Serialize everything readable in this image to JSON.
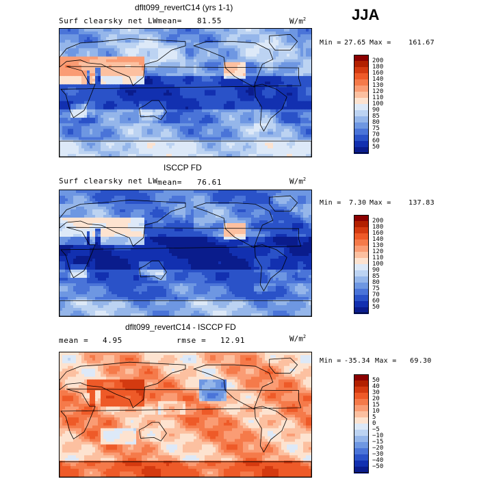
{
  "season": "JJA",
  "chart_data": [
    {
      "type": "heatmap",
      "title": "dflt099_revertC14 (yrs 1-1)",
      "variable": "Surf clearsky net LW",
      "stat_label": "mean=",
      "stat_value": "81.55",
      "units": "W/m",
      "units_exp": "2",
      "min_label": "Min =",
      "min_value": "27.65",
      "max_label": "Max =",
      "max_value": "161.67",
      "levels": [
        "200",
        "180",
        "160",
        "140",
        "130",
        "120",
        "110",
        "100",
        "90",
        "85",
        "80",
        "75",
        "70",
        "60",
        "50"
      ],
      "colors": [
        "#8b0000",
        "#b22000",
        "#d43a10",
        "#ee5a28",
        "#f57a4a",
        "#fa9c74",
        "#fcc0a0",
        "#fde3d0",
        "#dde9f8",
        "#bcd3f2",
        "#95b6ea",
        "#6e97e2",
        "#4a74d8",
        "#2a52c8",
        "#1230b0",
        "#0a1c8c"
      ],
      "field": "control"
    },
    {
      "type": "heatmap",
      "title": "ISCCP FD",
      "variable": "Surf clearsky net LW",
      "stat_label": "mean=",
      "stat_value": "76.61",
      "units": "W/m",
      "units_exp": "2",
      "min_label": "Min =",
      "min_value": "7.30",
      "max_label": "Max =",
      "max_value": "137.83",
      "levels": [
        "200",
        "180",
        "160",
        "140",
        "130",
        "120",
        "110",
        "100",
        "90",
        "85",
        "80",
        "75",
        "70",
        "60",
        "50"
      ],
      "colors": [
        "#8b0000",
        "#b22000",
        "#d43a10",
        "#ee5a28",
        "#f57a4a",
        "#fa9c74",
        "#fcc0a0",
        "#fde3d0",
        "#dde9f8",
        "#bcd3f2",
        "#95b6ea",
        "#6e97e2",
        "#4a74d8",
        "#2a52c8",
        "#1230b0",
        "#0a1c8c"
      ],
      "field": "obs"
    },
    {
      "type": "heatmap",
      "title": "dflt099_revertC14 - ISCCP FD",
      "stat_label": "mean =",
      "stat_value": "4.95",
      "stat2_label": "rmse =",
      "stat2_value": "12.91",
      "units": "W/m",
      "units_exp": "2",
      "min_label": "Min =",
      "min_value": "-35.34",
      "max_label": "Max =",
      "max_value": "69.30",
      "levels": [
        "50",
        "40",
        "30",
        "20",
        "15",
        "10",
        "5",
        "0",
        "−5",
        "−10",
        "−15",
        "−20",
        "−30",
        "−40",
        "−50"
      ],
      "colors": [
        "#8b0000",
        "#b22000",
        "#d43a10",
        "#ee5a28",
        "#f57a4a",
        "#fa9c74",
        "#fcc0a0",
        "#fde3d0",
        "#dde9f8",
        "#bcd3f2",
        "#95b6ea",
        "#6e97e2",
        "#4a74d8",
        "#2a52c8",
        "#1230b0",
        "#0a1c8c"
      ],
      "field": "diff"
    }
  ]
}
